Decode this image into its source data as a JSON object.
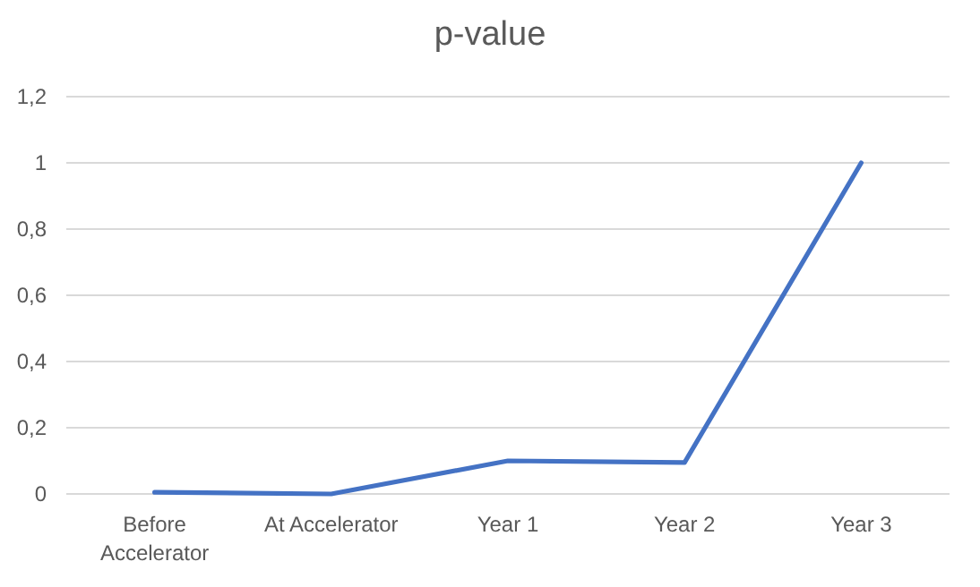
{
  "chart_data": {
    "type": "line",
    "title": "p-value",
    "categories": [
      "Before Accelerator",
      "At Accelerator",
      "Year 1",
      "Year 2",
      "Year 3"
    ],
    "series": [
      {
        "color": "#4472c4",
        "values": [
          0.005,
          0,
          0.1,
          0.095,
          1
        ]
      }
    ],
    "ylim": [
      0,
      1.2
    ],
    "yticks": [
      {
        "value": 0,
        "label": "0"
      },
      {
        "value": 0.2,
        "label": "0,2"
      },
      {
        "value": 0.4,
        "label": "0,4"
      },
      {
        "value": 0.6,
        "label": "0,6"
      },
      {
        "value": 0.8,
        "label": "0,8"
      },
      {
        "value": 1,
        "label": "1"
      },
      {
        "value": 1.2,
        "label": "1,2"
      }
    ],
    "grid": "y",
    "marker": "none",
    "line_style": "solid"
  }
}
